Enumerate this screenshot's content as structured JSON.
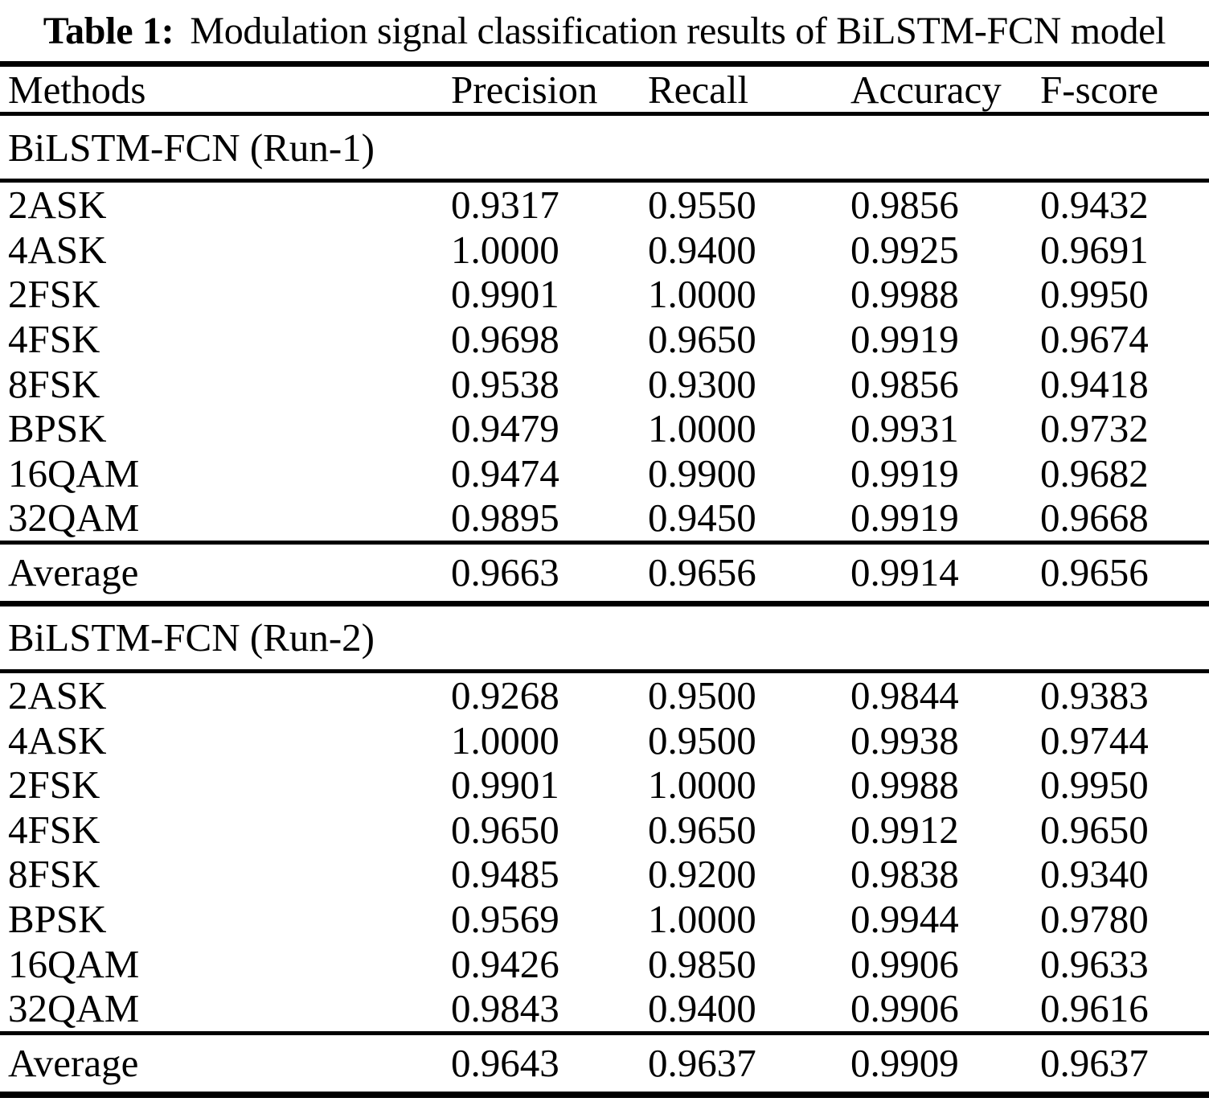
{
  "colors": {
    "text": "#000000",
    "background": "#ffffff"
  },
  "title": {
    "prefix": "Table 1:",
    "text": "Modulation signal classification results of BiLSTM-FCN model"
  },
  "table": {
    "columns": [
      "Methods",
      "Precision",
      "Recall",
      "Accuracy",
      "F-score"
    ],
    "sections": [
      {
        "name": "BiLSTM-FCN (Run-1)",
        "rows": [
          {
            "method": "2ASK",
            "precision": "0.9317",
            "recall": "0.9550",
            "accuracy": "0.9856",
            "fscore": "0.9432"
          },
          {
            "method": "4ASK",
            "precision": "1.0000",
            "recall": "0.9400",
            "accuracy": "0.9925",
            "fscore": "0.9691"
          },
          {
            "method": "2FSK",
            "precision": "0.9901",
            "recall": "1.0000",
            "accuracy": "0.9988",
            "fscore": "0.9950"
          },
          {
            "method": "4FSK",
            "precision": "0.9698",
            "recall": "0.9650",
            "accuracy": "0.9919",
            "fscore": "0.9674"
          },
          {
            "method": "8FSK",
            "precision": "0.9538",
            "recall": "0.9300",
            "accuracy": "0.9856",
            "fscore": "0.9418"
          },
          {
            "method": "BPSK",
            "precision": "0.9479",
            "recall": "1.0000",
            "accuracy": "0.9931",
            "fscore": "0.9732"
          },
          {
            "method": "16QAM",
            "precision": "0.9474",
            "recall": "0.9900",
            "accuracy": "0.9919",
            "fscore": "0.9682"
          },
          {
            "method": "32QAM",
            "precision": "0.9895",
            "recall": "0.9450",
            "accuracy": "0.9919",
            "fscore": "0.9668"
          }
        ],
        "average": {
          "method": "Average",
          "precision": "0.9663",
          "recall": "0.9656",
          "accuracy": "0.9914",
          "fscore": "0.9656"
        }
      },
      {
        "name": "BiLSTM-FCN (Run-2)",
        "rows": [
          {
            "method": "2ASK",
            "precision": "0.9268",
            "recall": "0.9500",
            "accuracy": "0.9844",
            "fscore": "0.9383"
          },
          {
            "method": "4ASK",
            "precision": "1.0000",
            "recall": "0.9500",
            "accuracy": "0.9938",
            "fscore": "0.9744"
          },
          {
            "method": "2FSK",
            "precision": "0.9901",
            "recall": "1.0000",
            "accuracy": "0.9988",
            "fscore": "0.9950"
          },
          {
            "method": "4FSK",
            "precision": "0.9650",
            "recall": "0.9650",
            "accuracy": "0.9912",
            "fscore": "0.9650"
          },
          {
            "method": "8FSK",
            "precision": "0.9485",
            "recall": "0.9200",
            "accuracy": "0.9838",
            "fscore": "0.9340"
          },
          {
            "method": "BPSK",
            "precision": "0.9569",
            "recall": "1.0000",
            "accuracy": "0.9944",
            "fscore": "0.9780"
          },
          {
            "method": "16QAM",
            "precision": "0.9426",
            "recall": "0.9850",
            "accuracy": "0.9906",
            "fscore": "0.9633"
          },
          {
            "method": "32QAM",
            "precision": "0.9843",
            "recall": "0.9400",
            "accuracy": "0.9906",
            "fscore": "0.9616"
          }
        ],
        "average": {
          "method": "Average",
          "precision": "0.9643",
          "recall": "0.9637",
          "accuracy": "0.9909",
          "fscore": "0.9637"
        }
      }
    ]
  }
}
